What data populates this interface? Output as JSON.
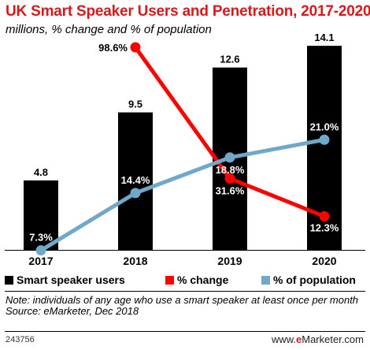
{
  "title": "UK Smart Speaker Users and Penetration, 2017-2020",
  "subtitle": "millions, % change and % of population",
  "legend": {
    "users": "Smart speaker users",
    "change": "% change",
    "population": "% of population"
  },
  "note_line1": "Note: individuals of any age who use a smart speaker at least once per month",
  "note_line2": "Source: eMarketer, Dec 2018",
  "footer_id": "243756",
  "footer_brand_pre": "www.",
  "footer_brand_mid": "e",
  "footer_brand_post": "Marketer.com",
  "colors": {
    "bars": "#000000",
    "change": "#ff0000",
    "population": "#6fa8c8",
    "title": "#d7191c"
  },
  "chart_data": {
    "type": "bar",
    "categories": [
      "2017",
      "2018",
      "2019",
      "2020"
    ],
    "series": [
      {
        "name": "Smart speaker users",
        "type": "bar",
        "values": [
          4.8,
          9.5,
          12.6,
          14.1
        ],
        "labels": [
          "4.8",
          "9.5",
          "12.6",
          "14.1"
        ]
      },
      {
        "name": "% change",
        "type": "line",
        "values": [
          null,
          98.6,
          31.6,
          12.3
        ],
        "labels": [
          "",
          "98.6%",
          "31.6%",
          "12.3%"
        ]
      },
      {
        "name": "% of population",
        "type": "line",
        "values": [
          7.3,
          14.4,
          18.8,
          21.0
        ],
        "labels": [
          "7.3%",
          "14.4%",
          "18.8%",
          "21.0%"
        ]
      }
    ],
    "title": "UK Smart Speaker Users and Penetration, 2017-2020",
    "subtitle": "millions, % change and % of population"
  }
}
